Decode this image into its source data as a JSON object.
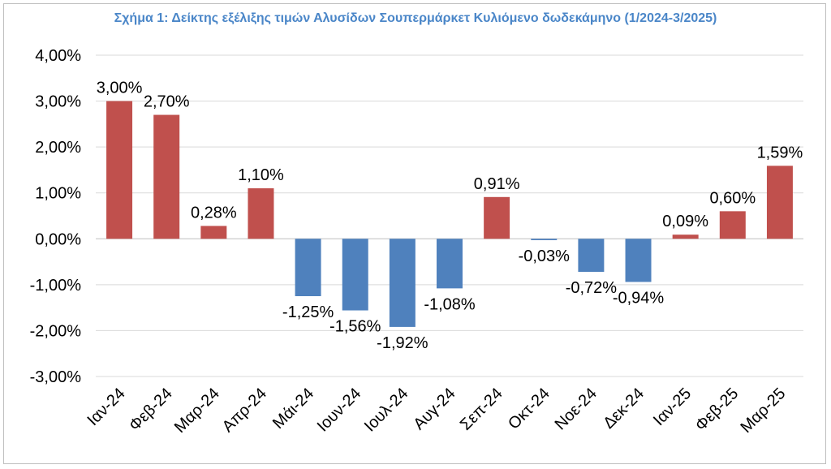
{
  "chart_data": {
    "type": "bar",
    "title": "Σχήμα 1: Δείκτης εξέλιξης τιμών Αλυσίδων Σουπερμάρκετ Κυλιόμενο δωδεκάμηνο (1/2024-3/2025)",
    "categories": [
      "Ιαν-24",
      "Φεβ-24",
      "Μαρ-24",
      "Απρ-24",
      "Μάι-24",
      "Ιουν-24",
      "Ιουλ-24",
      "Αυγ-24",
      "Σεπ-24",
      "Οκτ-24",
      "Νοε-24",
      "Δεκ-24",
      "Ιαν-25",
      "Φεβ-25",
      "Μαρ-25"
    ],
    "values": [
      3.0,
      2.7,
      0.28,
      1.1,
      -1.25,
      -1.56,
      -1.92,
      -1.08,
      0.91,
      -0.03,
      -0.72,
      -0.94,
      0.09,
      0.6,
      1.59
    ],
    "data_labels": [
      "3,00%",
      "2,70%",
      "0,28%",
      "1,10%",
      "-1,25%",
      "-1,56%",
      "-1,92%",
      "-1,08%",
      "0,91%",
      "-0,03%",
      "-0,72%",
      "-0,94%",
      "0,09%",
      "0,60%",
      "1,59%"
    ],
    "ylim": [
      -3,
      4
    ],
    "yticks": [
      4,
      3,
      2,
      1,
      0,
      -1,
      -2,
      -3
    ],
    "ytick_labels": [
      "4,00%",
      "3,00%",
      "2,00%",
      "1,00%",
      "0,00%",
      "-1,00%",
      "-2,00%",
      "-3,00%"
    ],
    "grid": true,
    "xlabel": "",
    "ylabel": "",
    "colors": {
      "positive": "#c0504d",
      "negative": "#4f81bd",
      "grid": "#d9d9d9",
      "axis": "#bfbfbf"
    }
  }
}
